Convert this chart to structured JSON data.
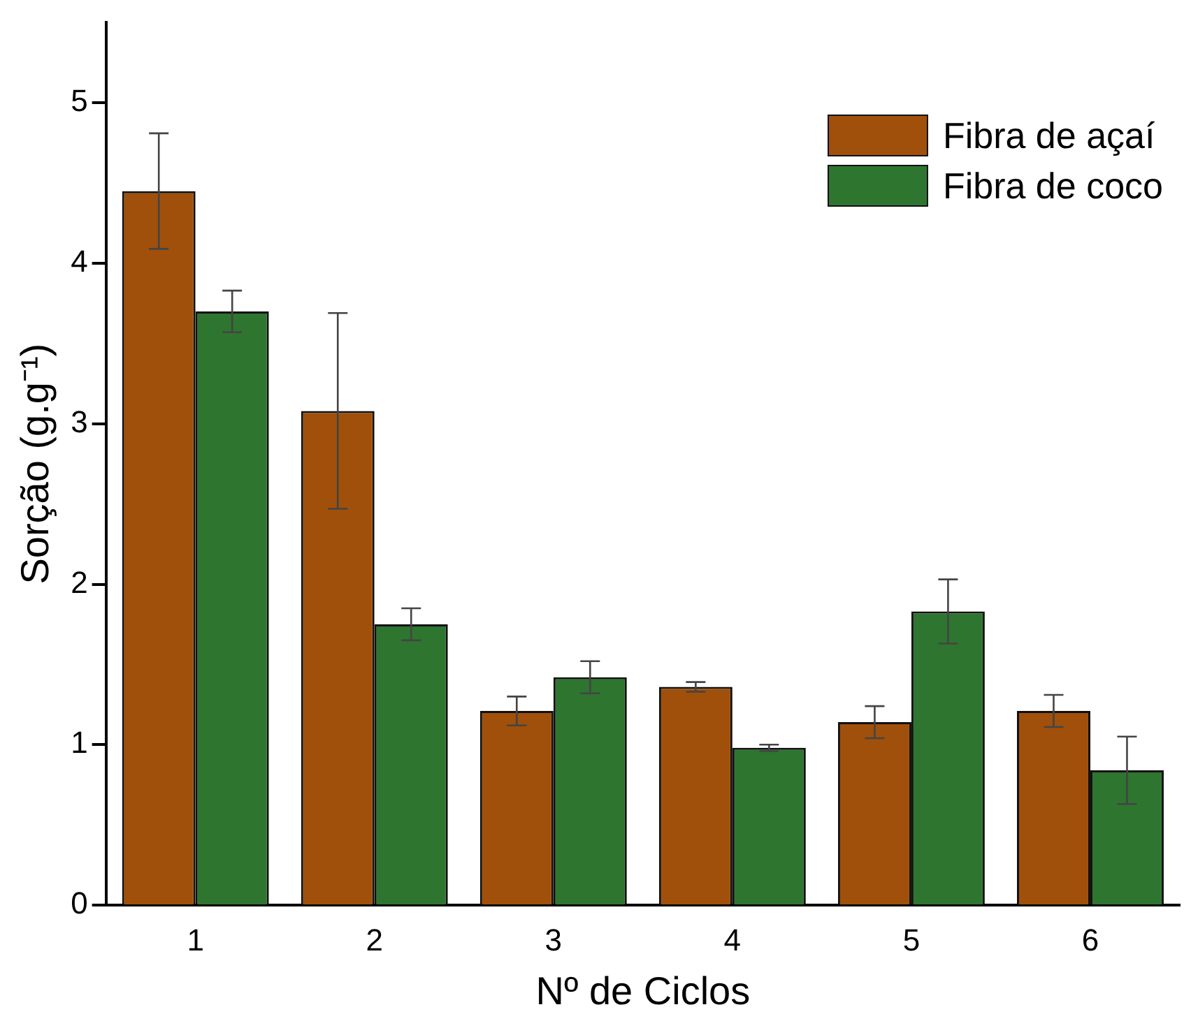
{
  "chart_data": {
    "type": "bar",
    "xlabel": "Nº de Ciclos",
    "ylabel": "Sorção (g.g⁻¹)",
    "categories": [
      "1",
      "2",
      "3",
      "4",
      "5",
      "6"
    ],
    "series": [
      {
        "name": "Fibra de açaí",
        "color": "#a0500a",
        "values": [
          4.45,
          3.08,
          1.21,
          1.36,
          1.14,
          1.21
        ],
        "errors": [
          0.36,
          0.61,
          0.09,
          0.03,
          0.1,
          0.1
        ]
      },
      {
        "name": "Fibra de coco",
        "color": "#2e7530",
        "values": [
          3.7,
          1.75,
          1.42,
          0.98,
          1.83,
          0.84
        ],
        "errors": [
          0.13,
          0.1,
          0.1,
          0.02,
          0.2,
          0.21
        ]
      }
    ],
    "ylim": [
      0,
      5.5
    ],
    "yticks": [
      0,
      1,
      2,
      3,
      4,
      5
    ],
    "grid": false,
    "legend": "top right"
  }
}
